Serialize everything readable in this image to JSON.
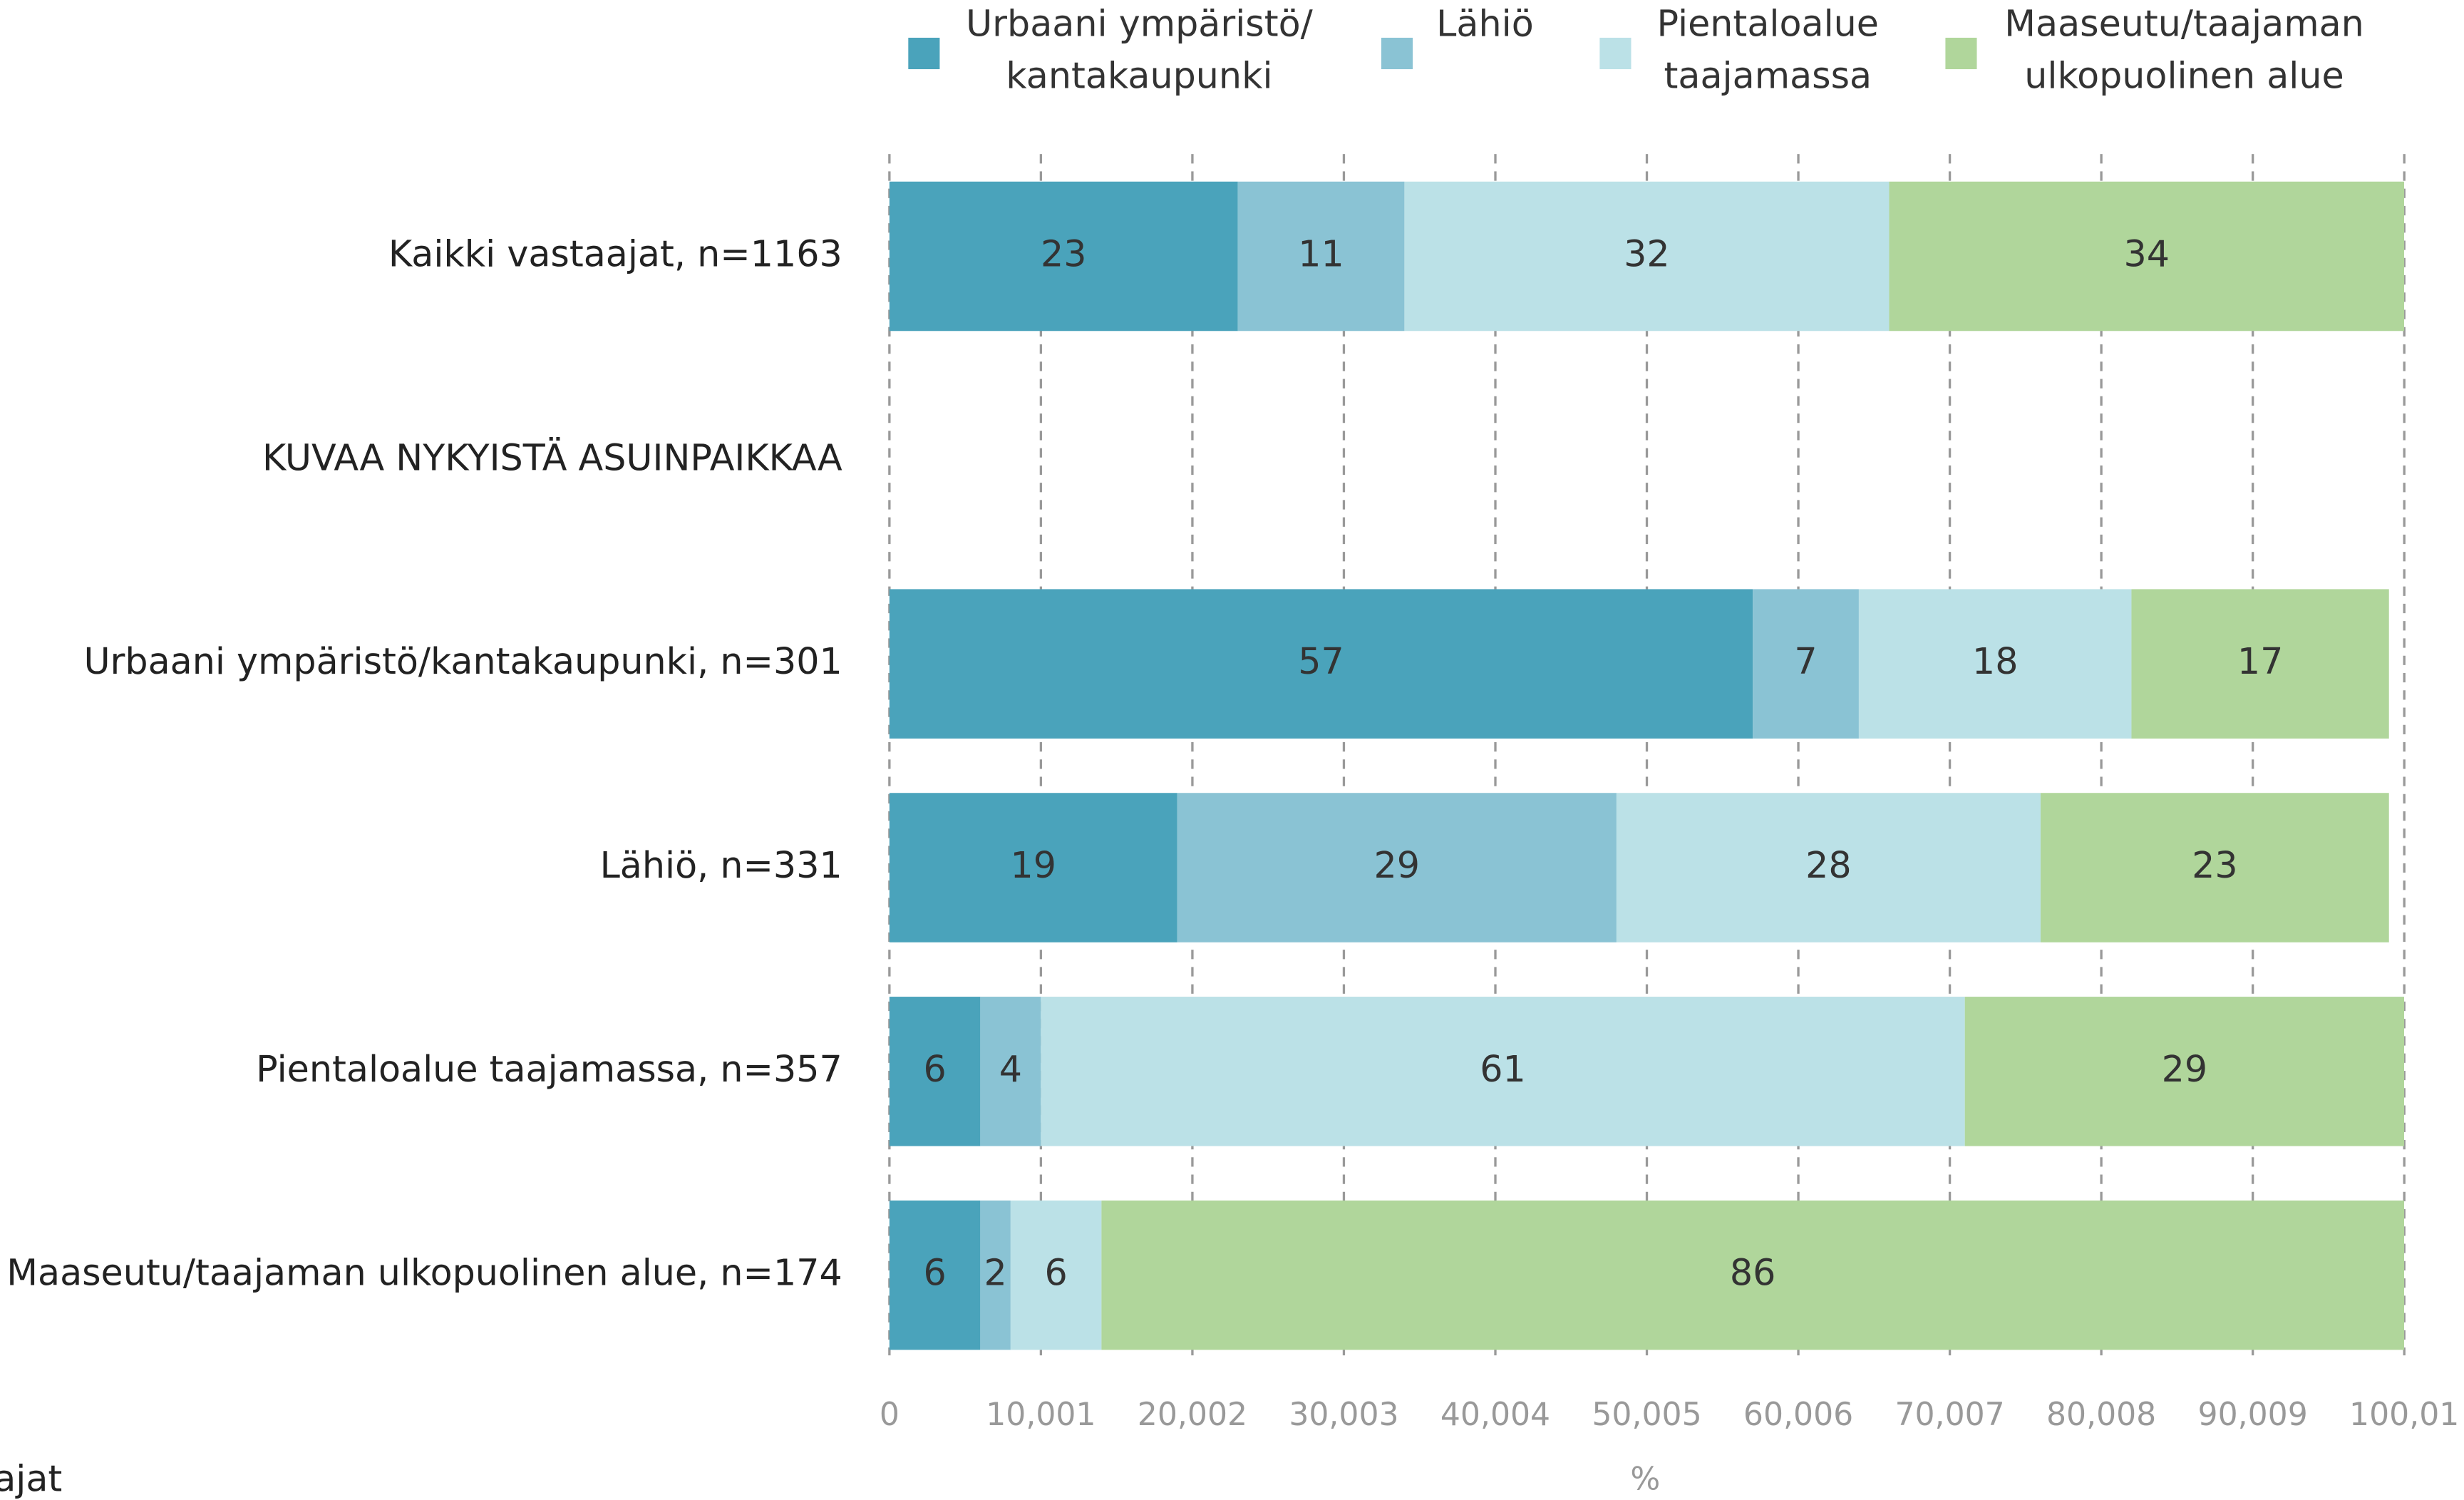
{
  "chart_data": {
    "type": "stacked_barh",
    "categories": [
      "Kaikki vastaajat, n=1163",
      "KUVAA NYKYISTÄ ASUINPAIKKAA",
      "Urbaani ympäristö/kantakaupunki, n=301",
      "Lähiö, n=331",
      "Pientaloalue taajamassa, n=357",
      "Maaseutu/taajaman ulkopuolinen alue, n=174"
    ],
    "series": [
      {
        "name": "Urbaani ympäristö/\nkantakaupunki",
        "color": "#4aa3bb",
        "values": [
          23,
          null,
          57,
          19,
          6,
          6
        ]
      },
      {
        "name": "Lähiö",
        "color": "#8ac3d4",
        "values": [
          11,
          null,
          7,
          29,
          4,
          2
        ]
      },
      {
        "name": "Pientaloalue\ntaajamassa",
        "color": "#bbe1e7",
        "values": [
          32,
          null,
          18,
          28,
          61,
          6
        ]
      },
      {
        "name": "Maaseutu/taajaman\nulkopuolinen alue",
        "color": "#b0d69b",
        "values": [
          34,
          null,
          17,
          23,
          29,
          86
        ]
      }
    ],
    "xlim": [
      0,
      100.01
    ],
    "xticks": [
      0,
      {
        "value": 10.001,
        "label": "10,001"
      },
      {
        "value": 20.002,
        "label": "20,002"
      },
      {
        "value": 30.003,
        "label": "30,003"
      },
      {
        "value": 40.004,
        "label": "40,004"
      },
      {
        "value": 50.005,
        "label": "50,005"
      },
      {
        "value": 60.006,
        "label": "60,006"
      },
      {
        "value": 70.007,
        "label": "70,007"
      },
      {
        "value": 80.008,
        "label": "80,008"
      },
      {
        "value": 90.009,
        "label": "90,009"
      },
      {
        "value": 100.01,
        "label": "100,01"
      }
    ],
    "xlabel": "%",
    "annotation": "ajat",
    "grid": true,
    "legend": "top"
  }
}
